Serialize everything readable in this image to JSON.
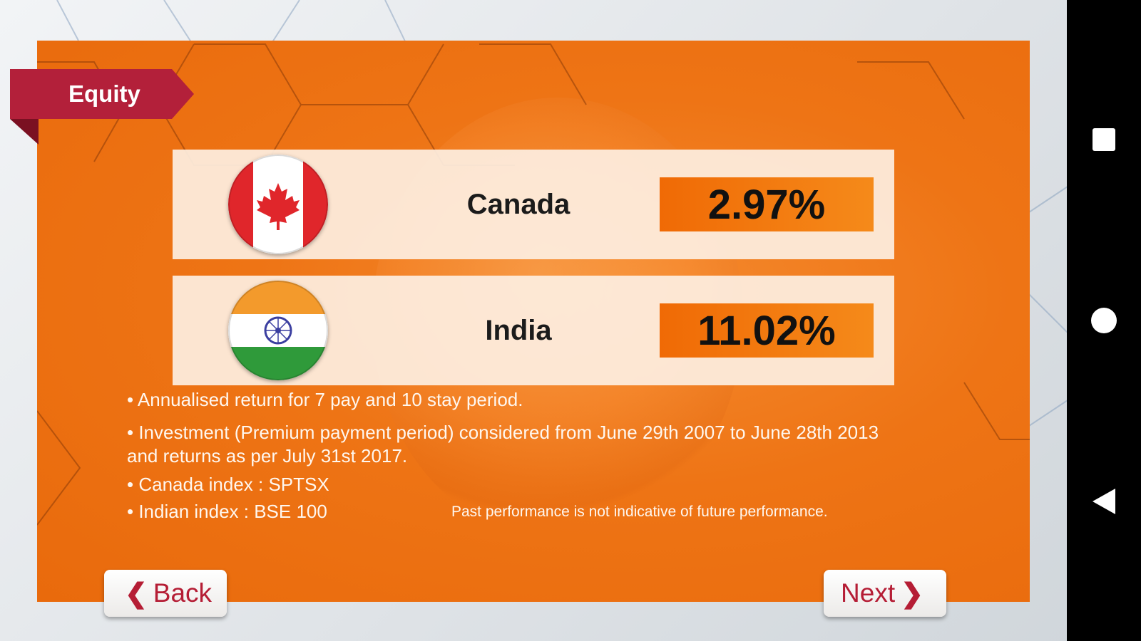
{
  "header": {
    "section_title": "Equity"
  },
  "returns": [
    {
      "country": "Canada",
      "value": "2.97%",
      "flag_icon": "canada-flag-icon"
    },
    {
      "country": "India",
      "value": "11.02%",
      "flag_icon": "india-flag-icon"
    }
  ],
  "notes": [
    "• Annualised return for 7 pay and 10 stay period.",
    "• Investment (Premium payment period) considered from June 29th 2007 to June 28th 2013 and returns as per July 31st 2017.",
    "• Canada index : SPTSX",
    "• Indian index : BSE 100"
  ],
  "disclaimer": "Past performance is not indicative of future performance.",
  "buttons": {
    "back_label": "Back",
    "back_icon": "chevron-left-icon",
    "next_label": "Next",
    "next_icon": "chevron-right-icon"
  },
  "system_nav": {
    "recents_icon": "square-icon",
    "home_icon": "circle-icon",
    "back_icon": "triangle-back-icon"
  },
  "colors": {
    "panel_orange": "#ee7415",
    "ribbon_red": "#b3203a",
    "value_orange": "#f58a1a",
    "button_text_red": "#b51d35"
  }
}
